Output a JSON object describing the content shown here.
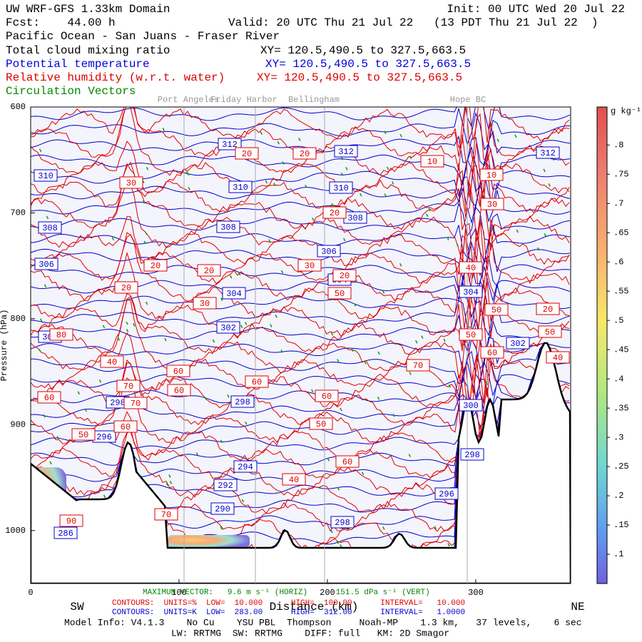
{
  "header": {
    "title": "UW WRF-GFS 1.33km Domain",
    "init": "Init: 00 UTC Wed 20 Jul 22",
    "fcst": "Fcst:    44.00 h",
    "valid": "Valid: 20 UTC Thu 21 Jul 22   (13 PDT Thu 21 Jul 22  )",
    "region": "Pacific Ocean - San Juans - Fraser River",
    "fields": [
      {
        "name": "Total cloud mixing ratio",
        "xy": "XY= 120.5,490.5 to 327.5,663.5",
        "color": "#000000"
      },
      {
        "name": "Potential temperature",
        "xy": "XY= 120.5,490.5 to 327.5,663.5",
        "color": "#0000dd"
      },
      {
        "name": "Relative humidity (w.r.t. water)",
        "xy": "XY= 120.5,490.5 to 327.5,663.5",
        "color": "#dd0000"
      },
      {
        "name": "Circulation Vectors",
        "color": "#008800"
      }
    ]
  },
  "chart_data": {
    "type": "contour",
    "ylabel": "Pressure (hPa)",
    "xlabel": "Distance (km)",
    "left_end": "SW",
    "right_end": "NE",
    "xlim": [
      0,
      364
    ],
    "xticks": [
      0,
      100,
      200,
      300
    ],
    "ylim": [
      1050,
      600
    ],
    "yticks": [
      600,
      700,
      800,
      900,
      1000
    ],
    "locations": [
      "Port Angeles",
      "Friday Harbor",
      "Bellingham",
      "Hope BC"
    ],
    "theta_color": "#0000cc",
    "rh_color": "#dd0000",
    "theta_labels": [
      312,
      312,
      312,
      310,
      310,
      310,
      308,
      308,
      308,
      306,
      306,
      304,
      304,
      304,
      304,
      302,
      302,
      302,
      300,
      298,
      298,
      298,
      298,
      296,
      296,
      294,
      292,
      290,
      286
    ],
    "rh_labels": [
      20,
      20,
      20,
      20,
      20,
      20,
      20,
      10,
      10,
      30,
      30,
      30,
      30,
      20,
      40,
      40,
      40,
      50,
      50,
      50,
      50,
      60,
      60,
      60,
      60,
      60,
      70,
      70,
      70,
      60,
      60,
      50,
      60,
      50,
      40,
      20,
      80,
      70,
      90
    ],
    "colorbar": {
      "unit": "g kg⁻¹",
      "lim": [
        0.05,
        0.865
      ],
      "ticks": [
        {
          "value": 0.8,
          "label": ".8"
        },
        {
          "value": 0.75,
          "label": ".75"
        },
        {
          "value": 0.7,
          "label": ".7"
        },
        {
          "value": 0.65,
          "label": ".65"
        },
        {
          "value": 0.6,
          "label": ".6"
        },
        {
          "value": 0.55,
          "label": ".55"
        },
        {
          "value": 0.5,
          "label": ".5"
        },
        {
          "value": 0.45,
          "label": ".45"
        },
        {
          "value": 0.4,
          "label": ".4"
        },
        {
          "value": 0.35,
          "label": ".35"
        },
        {
          "value": 0.3,
          "label": ".3"
        },
        {
          "value": 0.25,
          "label": ".25"
        },
        {
          "value": 0.2,
          "label": ".2"
        },
        {
          "value": 0.15,
          "label": ".15"
        },
        {
          "value": 0.1,
          "label": ".1"
        }
      ]
    }
  },
  "footer": {
    "max_vector": "MAXIMUM VECTOR:   9.6 m s⁻¹ (HORIZ)      151.5 dPa s⁻¹ (VERT)",
    "rh_contours": "CONTOURS:  UNITS=%  LOW=  10.000      HIGH=  100.00      INTERVAL=   10.000",
    "theta_contours": "CONTOURS:  UNITS=K  LOW=  283.00      HIGH=  312.00      INTERVAL=   1.0000",
    "model_info": "Model Info: V4.1.3    No Cu    YSU PBL  Thompson     Noah-MP    1.3 km,   37 levels,    6 sec",
    "physics": "LW: RRTMG  SW: RRTMG    DIFF: full   KM: 2D Smagor"
  }
}
